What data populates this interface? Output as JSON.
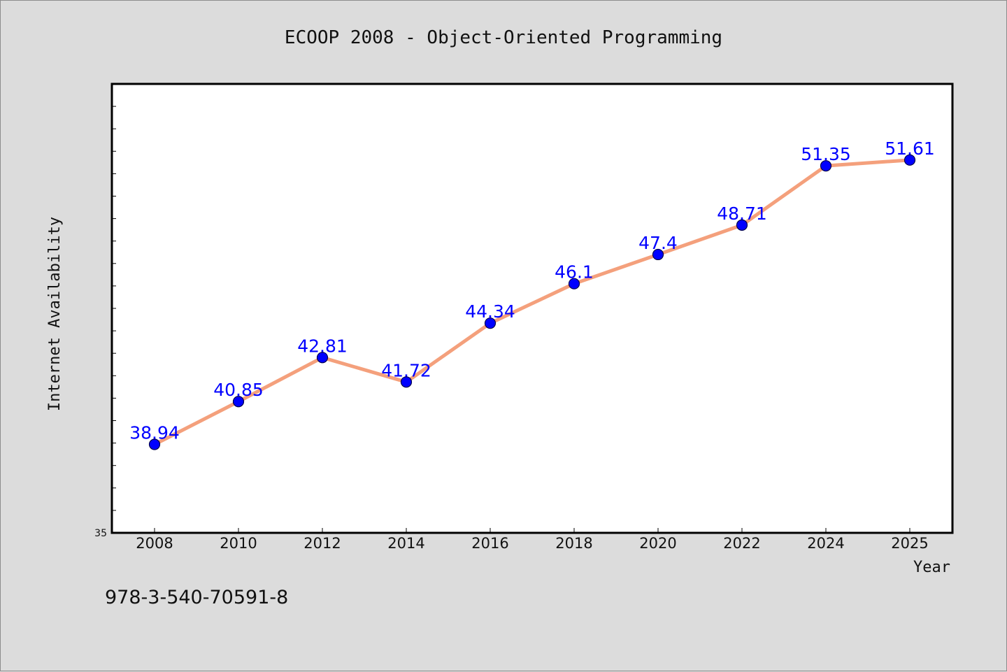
{
  "footnote": "978-3-540-70591-8",
  "colors": {
    "background": "#dcdcdc",
    "plot_background": "#ffffff",
    "line": "#f4a07c",
    "marker": "#0000ff",
    "label": "#0000ff"
  },
  "chart_data": {
    "type": "line",
    "title": "ECOOP 2008 - Object-Oriented Programming",
    "xlabel": "Year",
    "ylabel": "Internet Availability",
    "categories": [
      "2008",
      "2010",
      "2012",
      "2014",
      "2016",
      "2018",
      "2020",
      "2022",
      "2024",
      "2025"
    ],
    "series": [
      {
        "values": [
          38.94,
          40.85,
          42.81,
          41.72,
          44.34,
          46.1,
          47.4,
          48.71,
          51.35,
          51.61
        ],
        "data_labels": [
          "38.94",
          "40.85",
          "42.81",
          "41.72",
          "44.34",
          "46.1",
          "47.4",
          "48.71",
          "51.35",
          "51.61"
        ]
      }
    ],
    "ylim": [
      35,
      55
    ],
    "y_tick_labels": [
      "35"
    ],
    "grid": false,
    "legend": "none"
  }
}
